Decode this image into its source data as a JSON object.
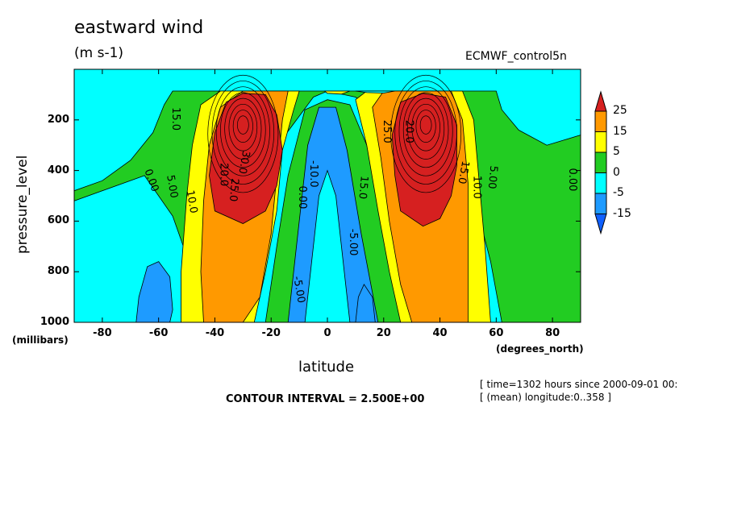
{
  "header": {
    "title": "eastward wind",
    "units": "(m s-1)",
    "dataset": "ECMWF_control5n"
  },
  "footer": {
    "contour_interval": "CONTOUR INTERVAL = 2.500E+00",
    "time_line": "[ time=1302 hours since 2000-09-01 00:",
    "longitude_line": "[ (mean) longitude:0..358 ]"
  },
  "chart_data": {
    "type": "heatmap",
    "xlabel": "latitude",
    "xunits": "(degrees_north)",
    "ylabel": "pressure_level",
    "yunits": "(millibars)",
    "xlim": [
      -90,
      90
    ],
    "ylim": [
      1000,
      0
    ],
    "x_ticks": [
      "-80",
      "-60",
      "-40",
      "-20",
      "0",
      "20",
      "40",
      "60",
      "80"
    ],
    "y_ticks": [
      "200",
      "400",
      "600",
      "800",
      "1000"
    ],
    "colorbar": {
      "levels": [
        "25",
        "15",
        "5",
        "0",
        "-5",
        "-15"
      ],
      "colors": [
        "#d62020",
        "#ff9900",
        "#ffff00",
        "#22cc22",
        "#00ffff",
        "#1e9bff",
        "#1060ff"
      ]
    },
    "jets": [
      {
        "lat": -30,
        "pressure": 200,
        "peak": 45
      },
      {
        "lat": 35,
        "pressure": 200,
        "peak": 45
      }
    ],
    "contour_labels": [
      "15.0",
      "0.00",
      "5.00",
      "10.0",
      "20.0",
      "25.0",
      "30.0",
      "-5.00",
      "-10.0",
      "0.00",
      "-5.00",
      "15.0",
      "25.0",
      "20.0",
      "15.0",
      "10.0",
      "5.00",
      "0.00"
    ]
  }
}
